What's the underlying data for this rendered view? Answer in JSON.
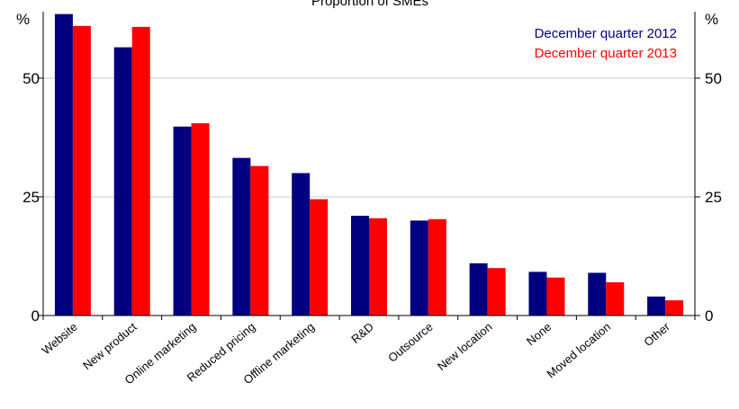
{
  "chart_data": {
    "type": "bar",
    "title": "Proportion of SMEs",
    "y_unit_left": "%",
    "y_unit_right": "%",
    "ylim": [
      0,
      64
    ],
    "yticks": [
      0,
      25,
      50
    ],
    "grid": true,
    "legend_position": "top-right",
    "categories": [
      "Website",
      "New product",
      "Online marketing",
      "Reduced pricing",
      "Offline marketing",
      "R&D",
      "Outsource",
      "New location",
      "None",
      "Moved location",
      "Other"
    ],
    "series": [
      {
        "name": "December quarter 2012",
        "color": "#000080",
        "values": [
          63.5,
          56.5,
          39.8,
          33.2,
          30.0,
          21.0,
          20.0,
          11.0,
          9.2,
          9.0,
          4.0
        ]
      },
      {
        "name": "December quarter 2013",
        "color": "#ff0000",
        "values": [
          61.0,
          60.8,
          40.5,
          31.5,
          24.5,
          20.5,
          20.3,
          10.0,
          8.0,
          7.0,
          3.2
        ]
      }
    ]
  }
}
